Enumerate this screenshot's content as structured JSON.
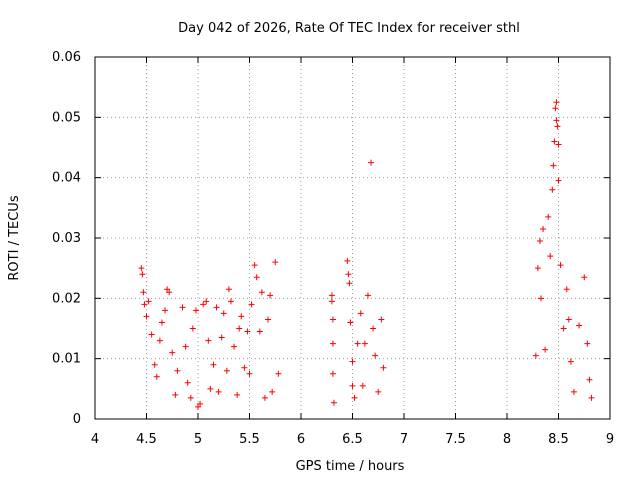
{
  "chart_data": {
    "type": "scatter",
    "title": "Day 042 of 2026, Rate Of TEC Index for receiver sthl",
    "xlabel": "GPS time / hours",
    "ylabel": "ROTI / TECUs",
    "xlim": [
      4,
      9
    ],
    "ylim": [
      0,
      0.06
    ],
    "xticks": [
      "4",
      "4.5",
      "5",
      "5.5",
      "6",
      "6.5",
      "7",
      "7.5",
      "8",
      "8.5",
      "9"
    ],
    "yticks": [
      "0",
      "0.01",
      "0.02",
      "0.03",
      "0.04",
      "0.05",
      "0.06"
    ],
    "grid": true,
    "marker": "+",
    "marker_color": "#ff0000",
    "series": [
      {
        "name": "ROTI",
        "points": [
          [
            4.45,
            0.025
          ],
          [
            4.46,
            0.024
          ],
          [
            4.47,
            0.021
          ],
          [
            4.48,
            0.019
          ],
          [
            4.5,
            0.017
          ],
          [
            4.52,
            0.0195
          ],
          [
            4.55,
            0.014
          ],
          [
            4.58,
            0.009
          ],
          [
            4.6,
            0.007
          ],
          [
            4.63,
            0.013
          ],
          [
            4.65,
            0.016
          ],
          [
            4.68,
            0.018
          ],
          [
            4.7,
            0.0215
          ],
          [
            4.72,
            0.021
          ],
          [
            4.75,
            0.011
          ],
          [
            4.78,
            0.004
          ],
          [
            4.8,
            0.008
          ],
          [
            4.85,
            0.0185
          ],
          [
            4.88,
            0.012
          ],
          [
            4.9,
            0.006
          ],
          [
            4.93,
            0.0035
          ],
          [
            4.95,
            0.015
          ],
          [
            4.98,
            0.018
          ],
          [
            5.0,
            0.002
          ],
          [
            5.02,
            0.0025
          ],
          [
            5.05,
            0.019
          ],
          [
            5.08,
            0.0195
          ],
          [
            5.1,
            0.013
          ],
          [
            5.12,
            0.005
          ],
          [
            5.15,
            0.009
          ],
          [
            5.18,
            0.0185
          ],
          [
            5.2,
            0.0045
          ],
          [
            5.23,
            0.0135
          ],
          [
            5.25,
            0.0175
          ],
          [
            5.28,
            0.008
          ],
          [
            5.3,
            0.0215
          ],
          [
            5.32,
            0.0195
          ],
          [
            5.35,
            0.012
          ],
          [
            5.38,
            0.004
          ],
          [
            5.4,
            0.015
          ],
          [
            5.42,
            0.017
          ],
          [
            5.45,
            0.0085
          ],
          [
            5.48,
            0.0145
          ],
          [
            5.5,
            0.0075
          ],
          [
            5.52,
            0.019
          ],
          [
            5.55,
            0.0255
          ],
          [
            5.57,
            0.0235
          ],
          [
            5.6,
            0.0145
          ],
          [
            5.62,
            0.021
          ],
          [
            5.65,
            0.0035
          ],
          [
            5.68,
            0.0165
          ],
          [
            5.7,
            0.0205
          ],
          [
            5.72,
            0.0045
          ],
          [
            5.75,
            0.026
          ],
          [
            5.78,
            0.0075
          ],
          [
            6.3,
            0.0205
          ],
          [
            6.3,
            0.0195
          ],
          [
            6.31,
            0.0165
          ],
          [
            6.31,
            0.0125
          ],
          [
            6.31,
            0.0075
          ],
          [
            6.32,
            0.0027
          ],
          [
            6.45,
            0.0262
          ],
          [
            6.46,
            0.024
          ],
          [
            6.47,
            0.0225
          ],
          [
            6.48,
            0.016
          ],
          [
            6.5,
            0.0095
          ],
          [
            6.5,
            0.0055
          ],
          [
            6.52,
            0.0035
          ],
          [
            6.55,
            0.0125
          ],
          [
            6.58,
            0.0175
          ],
          [
            6.6,
            0.0055
          ],
          [
            6.62,
            0.0125
          ],
          [
            6.65,
            0.0205
          ],
          [
            6.68,
            0.0425
          ],
          [
            6.7,
            0.015
          ],
          [
            6.72,
            0.0105
          ],
          [
            6.75,
            0.0045
          ],
          [
            6.78,
            0.0165
          ],
          [
            6.8,
            0.0085
          ],
          [
            8.28,
            0.0105
          ],
          [
            8.3,
            0.025
          ],
          [
            8.32,
            0.0295
          ],
          [
            8.33,
            0.02
          ],
          [
            8.35,
            0.0315
          ],
          [
            8.37,
            0.0115
          ],
          [
            8.4,
            0.0335
          ],
          [
            8.42,
            0.027
          ],
          [
            8.44,
            0.038
          ],
          [
            8.45,
            0.042
          ],
          [
            8.46,
            0.046
          ],
          [
            8.47,
            0.0515
          ],
          [
            8.48,
            0.0525
          ],
          [
            8.48,
            0.0495
          ],
          [
            8.49,
            0.0485
          ],
          [
            8.5,
            0.0455
          ],
          [
            8.5,
            0.0395
          ],
          [
            8.52,
            0.0255
          ],
          [
            8.55,
            0.015
          ],
          [
            8.58,
            0.0215
          ],
          [
            8.6,
            0.0165
          ],
          [
            8.62,
            0.0095
          ],
          [
            8.65,
            0.0045
          ],
          [
            8.7,
            0.0155
          ],
          [
            8.75,
            0.0235
          ],
          [
            8.78,
            0.0125
          ],
          [
            8.8,
            0.0065
          ],
          [
            8.82,
            0.0035
          ]
        ]
      }
    ]
  }
}
